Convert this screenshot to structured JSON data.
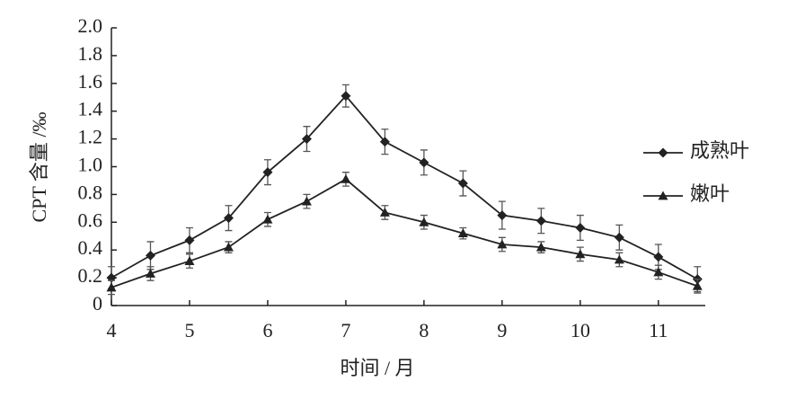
{
  "chart_data": {
    "type": "line",
    "x_label": "时间 / 月",
    "y_label": "CPT 含量 /‰",
    "x": [
      4,
      4.5,
      5,
      5.5,
      6,
      6.5,
      7,
      7.5,
      8,
      8.5,
      9,
      9.5,
      10,
      10.5,
      11,
      11.5
    ],
    "series": [
      {
        "name": "成熟叶",
        "color": "#222222",
        "marker": "diamond",
        "values": [
          0.2,
          0.36,
          0.47,
          0.63,
          0.96,
          1.2,
          1.51,
          1.18,
          1.03,
          0.88,
          0.65,
          0.61,
          0.56,
          0.49,
          0.35,
          0.19
        ],
        "errors": [
          0.08,
          0.1,
          0.09,
          0.09,
          0.09,
          0.09,
          0.08,
          0.09,
          0.09,
          0.09,
          0.1,
          0.09,
          0.09,
          0.09,
          0.09,
          0.09
        ]
      },
      {
        "name": "嫩叶",
        "color": "#222222",
        "marker": "triangle",
        "values": [
          0.13,
          0.23,
          0.32,
          0.42,
          0.62,
          0.75,
          0.91,
          0.67,
          0.6,
          0.52,
          0.44,
          0.42,
          0.37,
          0.33,
          0.24,
          0.14
        ],
        "errors": [
          0.05,
          0.05,
          0.05,
          0.04,
          0.05,
          0.05,
          0.05,
          0.05,
          0.05,
          0.04,
          0.05,
          0.04,
          0.05,
          0.05,
          0.05,
          0.05
        ]
      }
    ],
    "xlim": [
      4,
      11.6
    ],
    "xticks": [
      4,
      5,
      6,
      7,
      8,
      9,
      10,
      11
    ],
    "ylim": [
      0,
      2.0
    ],
    "yticks": [
      0,
      0.2,
      0.4,
      0.6,
      0.8,
      {
        "value": 1,
        "label": "1.0"
      },
      1.2,
      1.4,
      1.6,
      1.8,
      {
        "value": 2,
        "label": "2.0"
      }
    ],
    "legend": "right",
    "grid": false
  }
}
